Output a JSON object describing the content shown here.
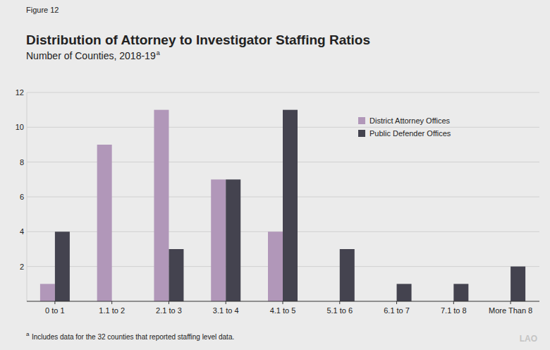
{
  "chart_data": {
    "type": "bar",
    "figure_label": "Figure 12",
    "title": "Distribution of Attorney to Investigator Staffing Ratios",
    "subtitle": "Number of Counties, 2018-19",
    "subtitle_note": "a",
    "footnote_marker": "a",
    "footnote": "Includes data for the 32 counties that reported staffing level data.",
    "logo": "LAO",
    "categories": [
      "0 to 1",
      "1.1 to 2",
      "2.1 to 3",
      "3.1 to 4",
      "4.1 to 5",
      "5.1 to 6",
      "6.1 to 7",
      "7.1 to 8",
      "More Than 8"
    ],
    "series": [
      {
        "name": "District Attorney Offices",
        "color": "#b197b9",
        "values": [
          1,
          9,
          11,
          7,
          4,
          0,
          0,
          0,
          0
        ]
      },
      {
        "name": "Public Defender Offices",
        "color": "#44434f",
        "values": [
          4,
          0,
          3,
          7,
          11,
          3,
          1,
          1,
          2
        ]
      }
    ],
    "ylim": [
      0,
      12
    ],
    "yticks": [
      2,
      4,
      6,
      8,
      10,
      12
    ],
    "grid": true,
    "legend": "top-right"
  }
}
